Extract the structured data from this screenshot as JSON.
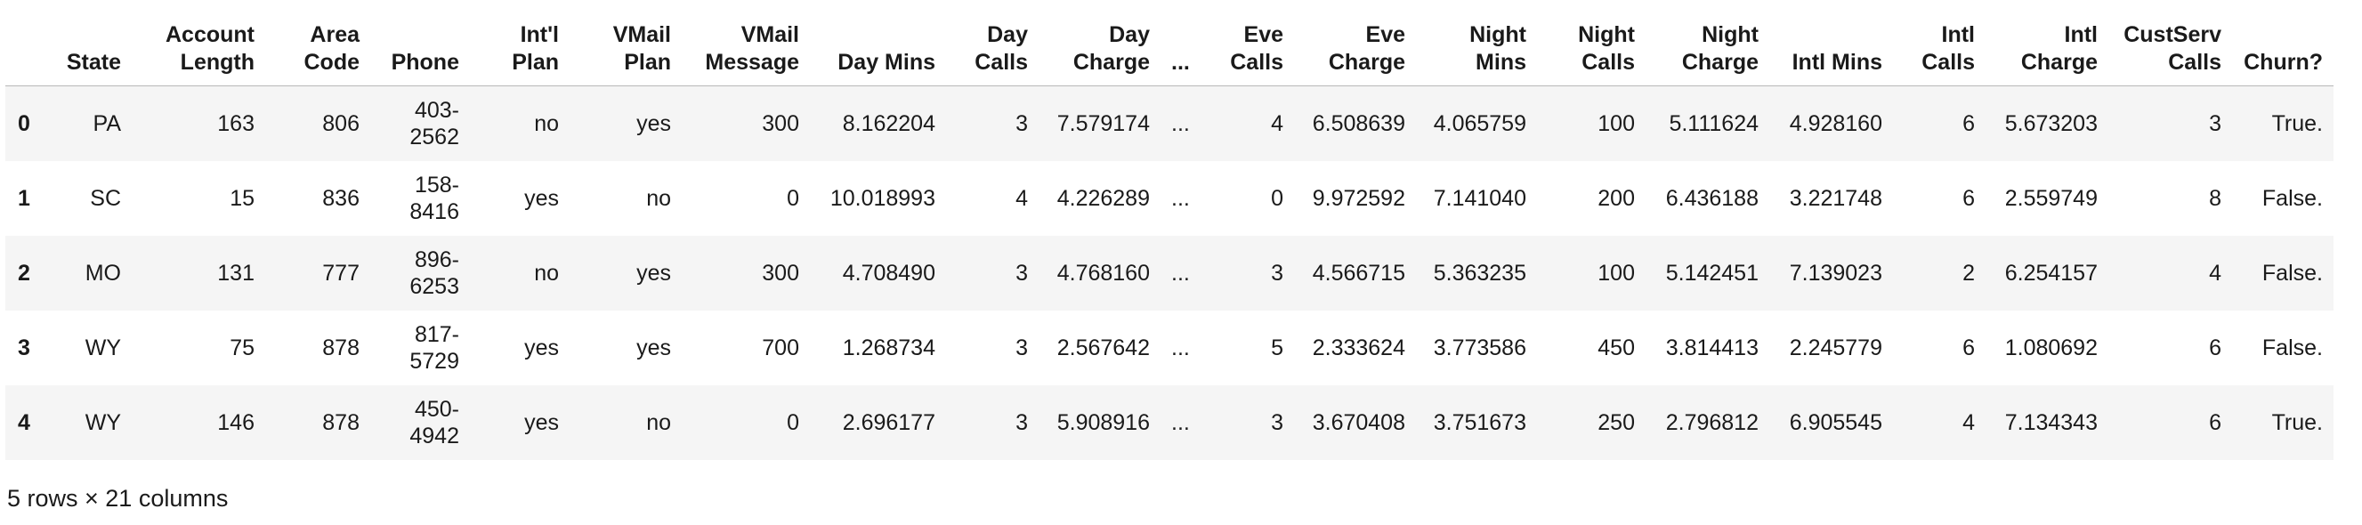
{
  "table": {
    "columns": [
      "",
      "State",
      "Account\nLength",
      "Area\nCode",
      "Phone",
      "Int'l\nPlan",
      "VMail\nPlan",
      "VMail\nMessage",
      "Day Mins",
      "Day\nCalls",
      "Day\nCharge",
      "...",
      "Eve\nCalls",
      "Eve\nCharge",
      "Night\nMins",
      "Night\nCalls",
      "Night\nCharge",
      "Intl Mins",
      "Intl\nCalls",
      "Intl\nCharge",
      "CustServ\nCalls",
      "Churn?"
    ],
    "rows": [
      [
        "0",
        "PA",
        "163",
        "806",
        "403-\n2562",
        "no",
        "yes",
        "300",
        "8.162204",
        "3",
        "7.579174",
        "...",
        "4",
        "6.508639",
        "4.065759",
        "100",
        "5.111624",
        "4.928160",
        "6",
        "5.673203",
        "3",
        "True."
      ],
      [
        "1",
        "SC",
        "15",
        "836",
        "158-\n8416",
        "yes",
        "no",
        "0",
        "10.018993",
        "4",
        "4.226289",
        "...",
        "0",
        "9.972592",
        "7.141040",
        "200",
        "6.436188",
        "3.221748",
        "6",
        "2.559749",
        "8",
        "False."
      ],
      [
        "2",
        "MO",
        "131",
        "777",
        "896-\n6253",
        "no",
        "yes",
        "300",
        "4.708490",
        "3",
        "4.768160",
        "...",
        "3",
        "4.566715",
        "5.363235",
        "100",
        "5.142451",
        "7.139023",
        "2",
        "6.254157",
        "4",
        "False."
      ],
      [
        "3",
        "WY",
        "75",
        "878",
        "817-\n5729",
        "yes",
        "yes",
        "700",
        "1.268734",
        "3",
        "2.567642",
        "...",
        "5",
        "2.333624",
        "3.773586",
        "450",
        "3.814413",
        "2.245779",
        "6",
        "1.080692",
        "6",
        "False."
      ],
      [
        "4",
        "WY",
        "146",
        "878",
        "450-\n4942",
        "yes",
        "no",
        "0",
        "2.696177",
        "3",
        "5.908916",
        "...",
        "3",
        "3.670408",
        "3.751673",
        "250",
        "2.796812",
        "6.905545",
        "4",
        "7.134343",
        "6",
        "True."
      ]
    ]
  },
  "footer": {
    "shape_text": "5 rows × 21 columns"
  }
}
